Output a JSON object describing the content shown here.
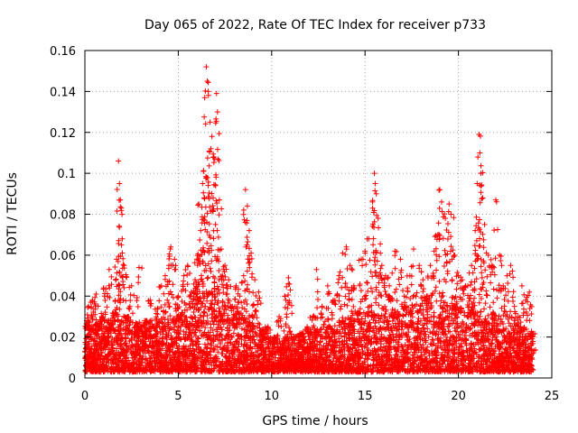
{
  "chart_data": {
    "type": "scatter",
    "title": "Day 065 of 2022, Rate Of TEC Index for receiver p733",
    "xlabel": "GPS time / hours",
    "ylabel": "ROTI / TECUs",
    "xlim": [
      0,
      25
    ],
    "ylim": [
      0,
      0.16
    ],
    "xticks": [
      "0",
      "5",
      "10",
      "15",
      "20",
      "25"
    ],
    "yticks": [
      "0",
      "0.02",
      "0.04",
      "0.06",
      "0.08",
      "0.1",
      "0.12",
      "0.14",
      "0.16"
    ],
    "grid": true,
    "marker": "+",
    "color": "#ff0000",
    "series": [
      {
        "points": [
          [
            0.1,
            0.028
          ],
          [
            0.2,
            0.035
          ],
          [
            0.3,
            0.02
          ],
          [
            0.4,
            0.038
          ],
          [
            0.5,
            0.012
          ],
          [
            0.6,
            0.041
          ],
          [
            0.7,
            0.025
          ],
          [
            0.9,
            0.03
          ],
          [
            1.0,
            0.044
          ],
          [
            1.2,
            0.015
          ],
          [
            1.3,
            0.053
          ],
          [
            1.4,
            0.022
          ],
          [
            1.6,
            0.032
          ],
          [
            1.7,
            0.058
          ],
          [
            1.8,
            0.106
          ],
          [
            1.85,
            0.095
          ],
          [
            1.9,
            0.087
          ],
          [
            1.95,
            0.083
          ],
          [
            2.0,
            0.068
          ],
          [
            2.1,
            0.055
          ],
          [
            2.3,
            0.03
          ],
          [
            2.5,
            0.045
          ],
          [
            2.7,
            0.025
          ],
          [
            2.9,
            0.054
          ],
          [
            3.1,
            0.02
          ],
          [
            3.3,
            0.028
          ],
          [
            3.5,
            0.038
          ],
          [
            3.7,
            0.015
          ],
          [
            3.9,
            0.034
          ],
          [
            4.1,
            0.045
          ],
          [
            4.3,
            0.05
          ],
          [
            4.5,
            0.055
          ],
          [
            4.6,
            0.064
          ],
          [
            4.8,
            0.058
          ],
          [
            5.0,
            0.04
          ],
          [
            5.1,
            0.03
          ],
          [
            5.3,
            0.05
          ],
          [
            5.5,
            0.055
          ],
          [
            5.7,
            0.042
          ],
          [
            5.9,
            0.048
          ],
          [
            6.0,
            0.058
          ],
          [
            6.1,
            0.085
          ],
          [
            6.2,
            0.072
          ],
          [
            6.3,
            0.095
          ],
          [
            6.35,
            0.101
          ],
          [
            6.4,
            0.088
          ],
          [
            6.5,
            0.152
          ],
          [
            6.55,
            0.145
          ],
          [
            6.6,
            0.14
          ],
          [
            6.7,
            0.125
          ],
          [
            6.75,
            0.112
          ],
          [
            6.8,
            0.118
          ],
          [
            6.9,
            0.108
          ],
          [
            7.0,
            0.094
          ],
          [
            7.05,
            0.139
          ],
          [
            7.1,
            0.13
          ],
          [
            7.2,
            0.087
          ],
          [
            7.3,
            0.063
          ],
          [
            7.5,
            0.055
          ],
          [
            7.7,
            0.048
          ],
          [
            7.9,
            0.035
          ],
          [
            8.1,
            0.045
          ],
          [
            8.3,
            0.04
          ],
          [
            8.5,
            0.05
          ],
          [
            8.6,
            0.092
          ],
          [
            8.7,
            0.084
          ],
          [
            8.8,
            0.072
          ],
          [
            8.9,
            0.061
          ],
          [
            9.1,
            0.048
          ],
          [
            9.3,
            0.042
          ],
          [
            9.5,
            0.02
          ],
          [
            9.8,
            0.025
          ],
          [
            10.1,
            0.018
          ],
          [
            10.4,
            0.03
          ],
          [
            10.7,
            0.04
          ],
          [
            10.9,
            0.049
          ],
          [
            11.0,
            0.043
          ],
          [
            11.3,
            0.02
          ],
          [
            11.6,
            0.022
          ],
          [
            11.9,
            0.025
          ],
          [
            12.2,
            0.03
          ],
          [
            12.4,
            0.053
          ],
          [
            12.7,
            0.035
          ],
          [
            13.0,
            0.045
          ],
          [
            13.3,
            0.038
          ],
          [
            13.6,
            0.05
          ],
          [
            13.8,
            0.061
          ],
          [
            14.0,
            0.064
          ],
          [
            14.2,
            0.055
          ],
          [
            14.4,
            0.045
          ],
          [
            14.6,
            0.032
          ],
          [
            14.8,
            0.058
          ],
          [
            15.0,
            0.062
          ],
          [
            15.2,
            0.068
          ],
          [
            15.4,
            0.086
          ],
          [
            15.5,
            0.1
          ],
          [
            15.55,
            0.095
          ],
          [
            15.6,
            0.09
          ],
          [
            15.7,
            0.078
          ],
          [
            15.9,
            0.055
          ],
          [
            16.1,
            0.05
          ],
          [
            16.3,
            0.045
          ],
          [
            16.6,
            0.062
          ],
          [
            16.9,
            0.058
          ],
          [
            17.1,
            0.04
          ],
          [
            17.4,
            0.05
          ],
          [
            17.6,
            0.063
          ],
          [
            17.9,
            0.055
          ],
          [
            18.1,
            0.048
          ],
          [
            18.3,
            0.04
          ],
          [
            18.5,
            0.055
          ],
          [
            18.7,
            0.062
          ],
          [
            18.9,
            0.07
          ],
          [
            19.0,
            0.092
          ],
          [
            19.1,
            0.086
          ],
          [
            19.3,
            0.078
          ],
          [
            19.5,
            0.085
          ],
          [
            19.6,
            0.08
          ],
          [
            19.8,
            0.06
          ],
          [
            20.0,
            0.05
          ],
          [
            20.2,
            0.048
          ],
          [
            20.5,
            0.045
          ],
          [
            20.7,
            0.055
          ],
          [
            20.9,
            0.072
          ],
          [
            21.0,
            0.095
          ],
          [
            21.1,
            0.119
          ],
          [
            21.15,
            0.11
          ],
          [
            21.2,
            0.1
          ],
          [
            21.3,
            0.088
          ],
          [
            21.4,
            0.075
          ],
          [
            21.6,
            0.06
          ],
          [
            21.8,
            0.055
          ],
          [
            22.0,
            0.087
          ],
          [
            22.2,
            0.06
          ],
          [
            22.4,
            0.045
          ],
          [
            22.6,
            0.05
          ],
          [
            22.8,
            0.055
          ],
          [
            23.0,
            0.035
          ],
          [
            23.2,
            0.03
          ],
          [
            23.4,
            0.045
          ],
          [
            23.6,
            0.038
          ],
          [
            23.8,
            0.042
          ],
          [
            23.9,
            0.02
          ],
          [
            24.0,
            0.012
          ]
        ]
      }
    ],
    "dense_band": {
      "lower": 0.003,
      "upper_profile": [
        [
          0,
          0.025
        ],
        [
          1,
          0.028
        ],
        [
          2,
          0.03
        ],
        [
          3,
          0.026
        ],
        [
          4,
          0.028
        ],
        [
          5,
          0.03
        ],
        [
          6,
          0.04
        ],
        [
          7,
          0.045
        ],
        [
          8,
          0.032
        ],
        [
          9,
          0.028
        ],
        [
          10,
          0.02
        ],
        [
          11,
          0.02
        ],
        [
          12,
          0.022
        ],
        [
          13,
          0.025
        ],
        [
          14,
          0.03
        ],
        [
          15,
          0.032
        ],
        [
          16,
          0.035
        ],
        [
          17,
          0.033
        ],
        [
          18,
          0.035
        ],
        [
          19,
          0.038
        ],
        [
          20,
          0.035
        ],
        [
          21,
          0.035
        ],
        [
          22,
          0.032
        ],
        [
          23,
          0.025
        ],
        [
          24,
          0.022
        ]
      ],
      "count": 5200
    }
  }
}
